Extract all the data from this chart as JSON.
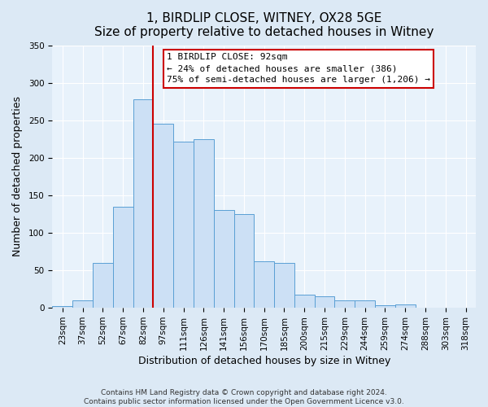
{
  "title": "1, BIRDLIP CLOSE, WITNEY, OX28 5GE",
  "subtitle": "Size of property relative to detached houses in Witney",
  "xlabel": "Distribution of detached houses by size in Witney",
  "ylabel": "Number of detached properties",
  "bar_labels": [
    "23sqm",
    "37sqm",
    "52sqm",
    "67sqm",
    "82sqm",
    "97sqm",
    "111sqm",
    "126sqm",
    "141sqm",
    "156sqm",
    "170sqm",
    "185sqm",
    "200sqm",
    "215sqm",
    "229sqm",
    "244sqm",
    "259sqm",
    "274sqm",
    "288sqm",
    "303sqm",
    "318sqm"
  ],
  "bar_values": [
    2,
    10,
    60,
    135,
    278,
    245,
    222,
    225,
    130,
    125,
    62,
    60,
    18,
    15,
    10,
    10,
    3,
    5,
    0,
    0,
    0
  ],
  "bar_color": "#cce0f5",
  "bar_edge_color": "#5a9fd4",
  "vline_x": 4.5,
  "vline_color": "#cc0000",
  "annotation_line1": "1 BIRDLIP CLOSE: 92sqm",
  "annotation_line2": "← 24% of detached houses are smaller (386)",
  "annotation_line3": "75% of semi-detached houses are larger (1,206) →",
  "annotation_box_facecolor": "#ffffff",
  "annotation_box_edgecolor": "#cc0000",
  "ylim": [
    0,
    350
  ],
  "yticks": [
    0,
    50,
    100,
    150,
    200,
    250,
    300,
    350
  ],
  "footer_line1": "Contains HM Land Registry data © Crown copyright and database right 2024.",
  "footer_line2": "Contains public sector information licensed under the Open Government Licence v3.0.",
  "background_color": "#dce9f5",
  "plot_background_color": "#e8f2fb",
  "title_fontsize": 11,
  "axis_label_fontsize": 9,
  "tick_fontsize": 7.5,
  "footer_fontsize": 6.5
}
